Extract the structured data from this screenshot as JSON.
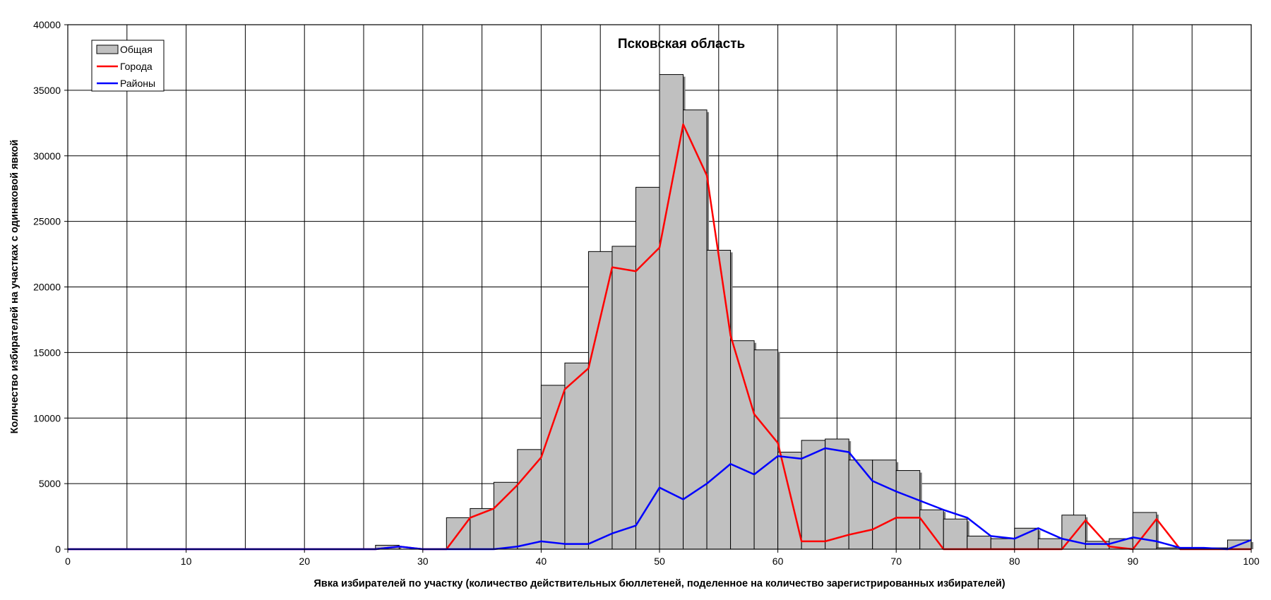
{
  "chart_data": {
    "type": "bar",
    "title": "Псковская область",
    "xlabel": "Явка избирателей по участку (количество действительных бюллетеней, поделенное на количество зарегистрированных избирателей)",
    "ylabel": "Количество избирателей на участках с одинаковой явкой",
    "xlim": [
      0,
      100
    ],
    "ylim": [
      0,
      40000
    ],
    "x_ticks": [
      0,
      10,
      20,
      30,
      40,
      50,
      60,
      70,
      80,
      90,
      100
    ],
    "y_ticks": [
      0,
      5000,
      10000,
      15000,
      20000,
      25000,
      30000,
      35000,
      40000
    ],
    "grid": true,
    "legend_position": "top-left",
    "legend": [
      "Общая",
      "Города",
      "Районы"
    ],
    "bar_width": 2,
    "colors": {
      "bars": "#c0c0c0",
      "cities": "#ff0000",
      "districts": "#0000ff"
    },
    "bars": {
      "name": "Общая",
      "x": [
        27,
        29,
        31,
        33,
        35,
        37,
        39,
        41,
        43,
        45,
        47,
        49,
        51,
        53,
        55,
        57,
        59,
        61,
        63,
        65,
        67,
        69,
        71,
        73,
        75,
        77,
        79,
        81,
        83,
        85,
        87,
        89,
        91,
        93,
        95,
        97,
        99
      ],
      "values": [
        300,
        0,
        0,
        2400,
        3100,
        5100,
        7600,
        12500,
        14200,
        22700,
        23100,
        27600,
        36200,
        33500,
        22800,
        15900,
        15200,
        7400,
        8300,
        8400,
        6800,
        6800,
        6000,
        3000,
        2300,
        1000,
        800,
        1600,
        800,
        2600,
        600,
        800,
        2800,
        100,
        100,
        100,
        700
      ]
    },
    "series": [
      {
        "name": "Города",
        "x": [
          0,
          26,
          28,
          30,
          32,
          34,
          36,
          38,
          40,
          42,
          44,
          46,
          48,
          50,
          52,
          54,
          56,
          58,
          60,
          62,
          64,
          66,
          68,
          70,
          72,
          74,
          76,
          78,
          80,
          82,
          84,
          86,
          88,
          90,
          92,
          94,
          96,
          98,
          100
        ],
        "values": [
          0,
          0,
          200,
          0,
          0,
          2400,
          3100,
          4900,
          7000,
          12200,
          13800,
          21500,
          21200,
          23000,
          32400,
          28500,
          16300,
          10300,
          8100,
          600,
          600,
          1100,
          1500,
          2400,
          2400,
          0,
          0,
          0,
          0,
          0,
          0,
          2200,
          200,
          0,
          2300,
          0,
          0,
          0,
          0
        ]
      },
      {
        "name": "Районы",
        "x": [
          0,
          26,
          28,
          30,
          32,
          34,
          36,
          38,
          40,
          42,
          44,
          46,
          48,
          50,
          52,
          54,
          56,
          58,
          60,
          62,
          64,
          66,
          68,
          70,
          72,
          74,
          76,
          78,
          80,
          82,
          84,
          86,
          88,
          90,
          92,
          94,
          96,
          98,
          100
        ],
        "values": [
          0,
          0,
          200,
          0,
          0,
          0,
          0,
          200,
          600,
          400,
          400,
          1200,
          1800,
          4700,
          3800,
          5000,
          6500,
          5700,
          7100,
          6900,
          7700,
          7400,
          5200,
          4400,
          3700,
          3000,
          2400,
          1000,
          800,
          1600,
          800,
          400,
          400,
          900,
          600,
          100,
          100,
          0,
          700
        ]
      }
    ]
  }
}
